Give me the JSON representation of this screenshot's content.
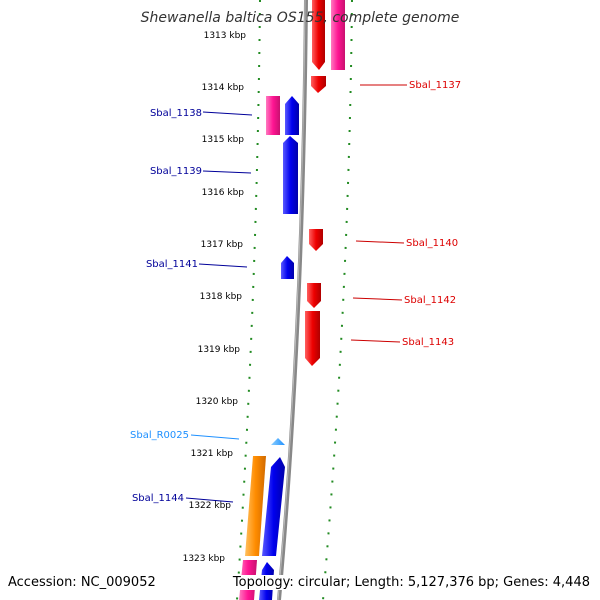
{
  "header": {
    "title": "Shewanella baltica OS155, complete genome"
  },
  "footer": {
    "accession": "Accession: NC_009052",
    "summary": "Topology: circular; Length: 5,127,376 bp; Genes: 4,448"
  },
  "colors": {
    "forward_cds": "#0000ee",
    "reverse_cds": "#ee0000",
    "pseudo": "#ff1493",
    "rna": "#ff8c00",
    "ncrna": "#1e90ff",
    "ticks": "#228b22",
    "backbone": "#888888"
  },
  "ruler": {
    "unit": "kbp",
    "labels": [
      "1313 kbp",
      "1314 kbp",
      "1315 kbp",
      "1316 kbp",
      "1317 kbp",
      "1318 kbp",
      "1319 kbp",
      "1320 kbp",
      "1321 kbp",
      "1322 kbp",
      "1323 kbp"
    ]
  },
  "genes": [
    {
      "label": "Sbal_1137",
      "strand": "reverse",
      "color": "#dd0000"
    },
    {
      "label": "Sbal_1138",
      "strand": "forward",
      "color": "#000099"
    },
    {
      "label": "Sbal_1139",
      "strand": "forward",
      "color": "#000099"
    },
    {
      "label": "Sbal_1140",
      "strand": "reverse",
      "color": "#dd0000"
    },
    {
      "label": "Sbal_1141",
      "strand": "forward",
      "color": "#000099"
    },
    {
      "label": "Sbal_1142",
      "strand": "reverse",
      "color": "#dd0000"
    },
    {
      "label": "Sbal_1143",
      "strand": "reverse",
      "color": "#dd0000"
    },
    {
      "label": "Sbal_R0025",
      "strand": "forward",
      "color": "#1e90ff"
    },
    {
      "label": "Sbal_1144",
      "strand": "forward",
      "color": "#000099"
    }
  ]
}
